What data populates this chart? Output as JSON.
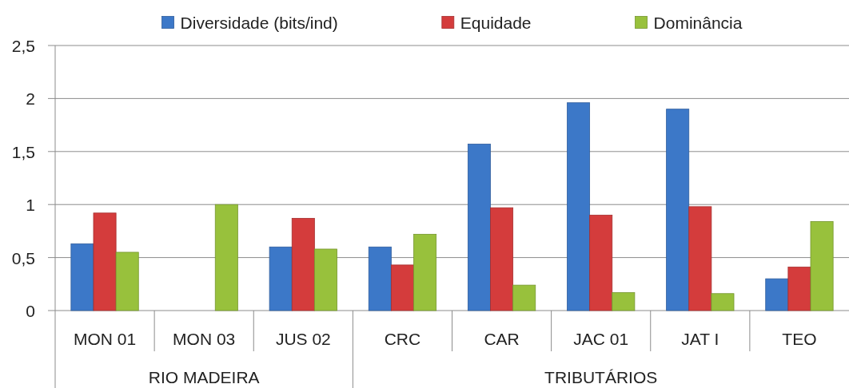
{
  "chart_data": {
    "type": "bar",
    "categories": [
      "MON 01",
      "MON 03",
      "JUS 02",
      "CRC",
      "CAR",
      "JAC 01",
      "JAT I",
      "TEO"
    ],
    "series": [
      {
        "name": "Diversidade (bits/ind)",
        "color": "#3c78c8",
        "values": [
          0.63,
          null,
          0.6,
          0.6,
          1.57,
          1.96,
          1.9,
          0.3
        ]
      },
      {
        "name": "Equidade",
        "color": "#d43c3c",
        "values": [
          0.92,
          null,
          0.87,
          0.43,
          0.97,
          0.9,
          0.98,
          0.41
        ]
      },
      {
        "name": "Dominância",
        "color": "#98c13c",
        "values": [
          0.55,
          1.0,
          0.58,
          0.72,
          0.24,
          0.17,
          0.16,
          0.84
        ]
      }
    ],
    "ylim": [
      0,
      2.5
    ],
    "yticks": [
      0,
      {
        "value": 0.5,
        "label": "0,5"
      },
      1,
      {
        "value": 1.5,
        "label": "1,5"
      },
      2,
      {
        "value": 2.5,
        "label": "2,5"
      }
    ],
    "grid": "y",
    "legend": "top",
    "annotations": [
      "RIO MADEIRA",
      "TRIBUTÁRIOS"
    ]
  }
}
